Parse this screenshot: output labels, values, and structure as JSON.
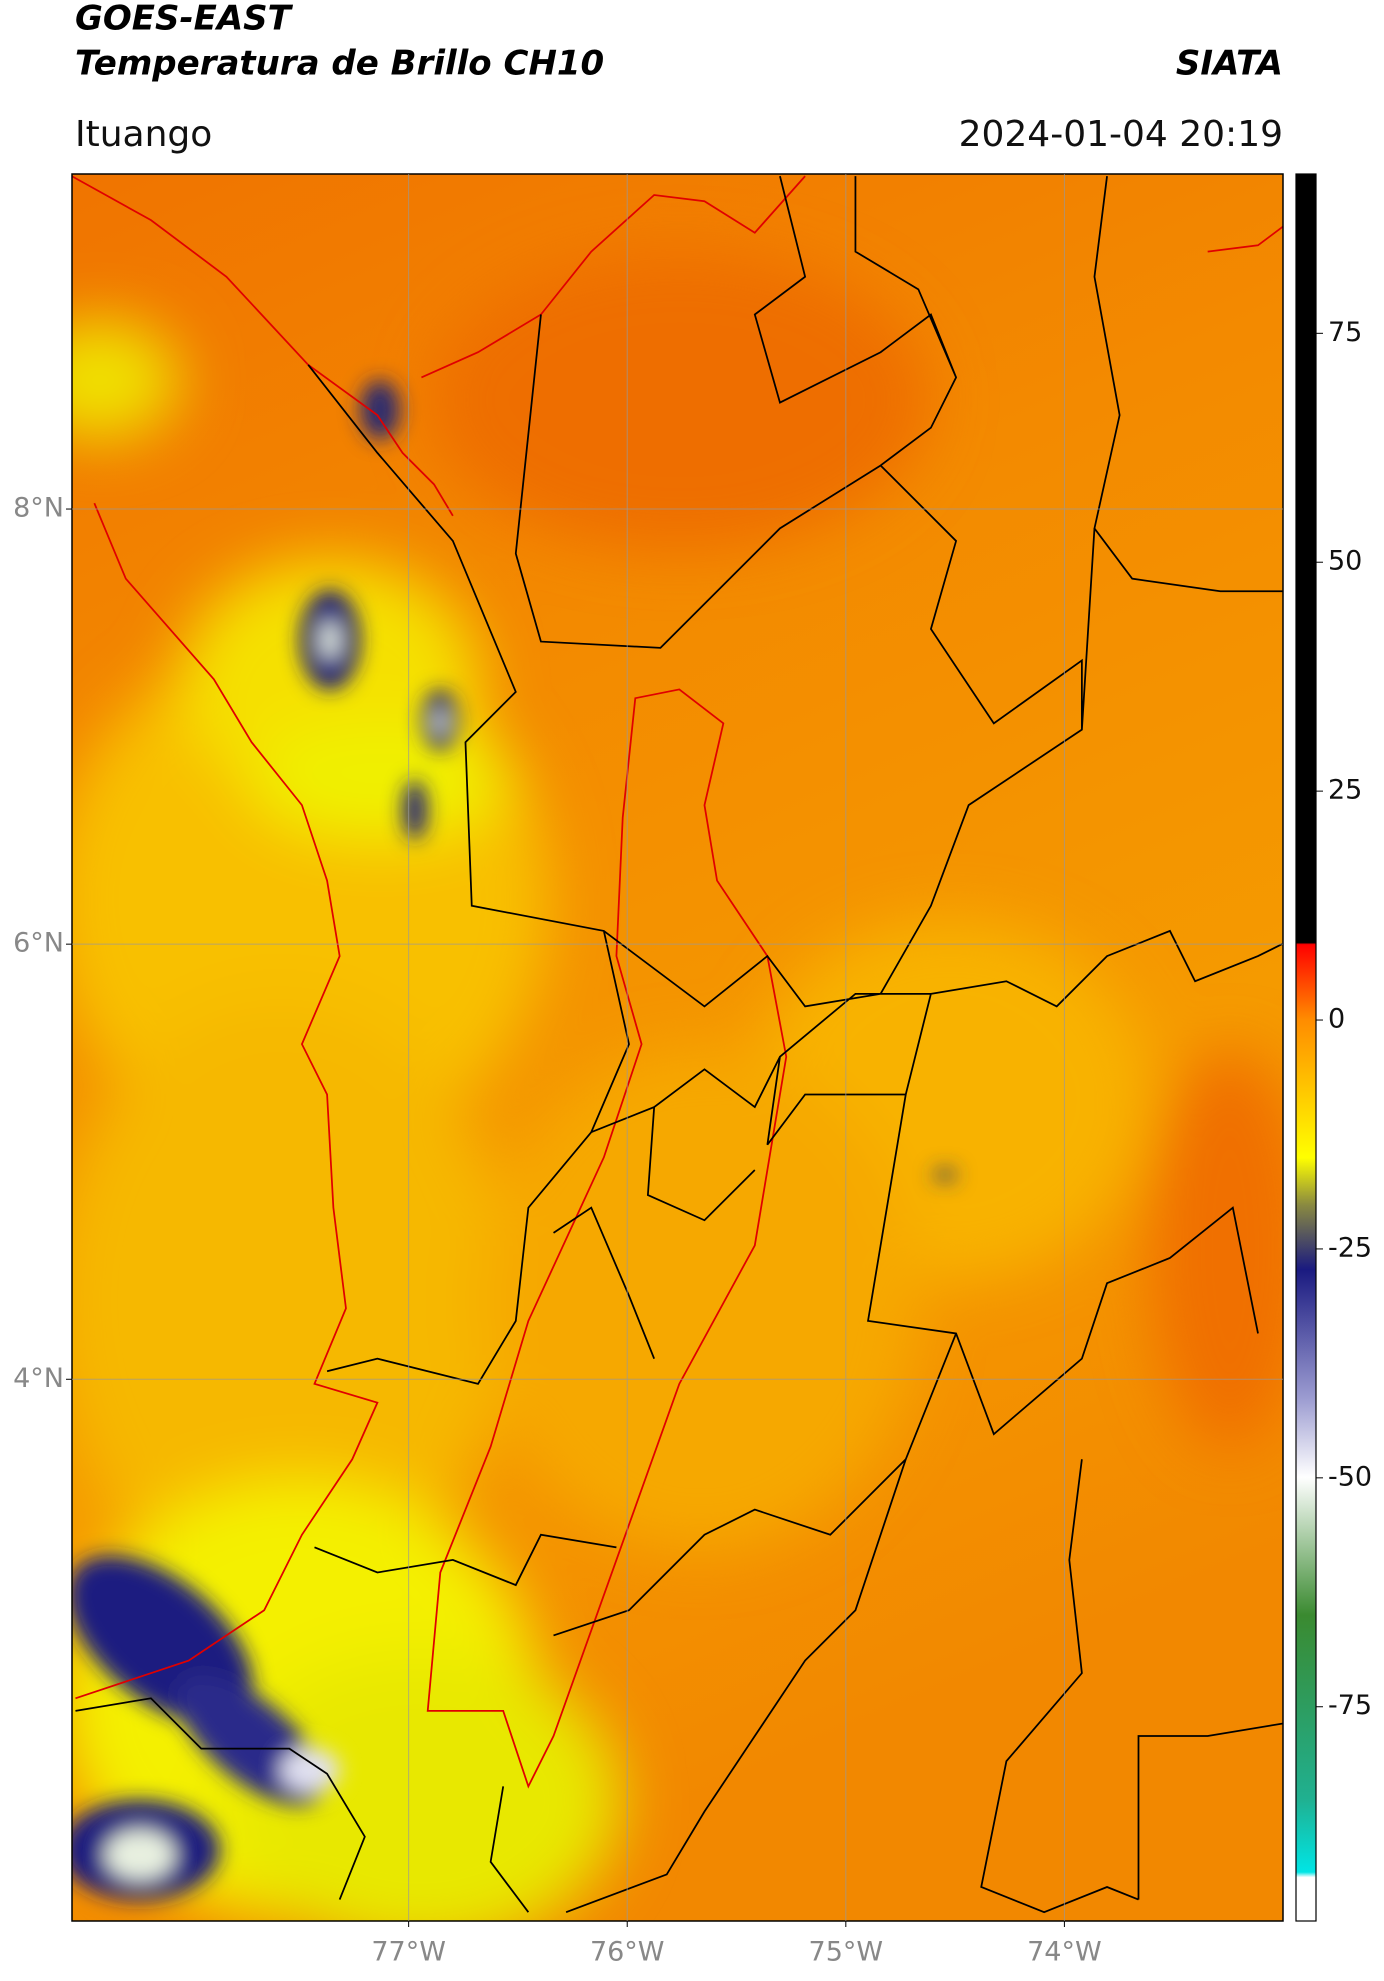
{
  "header": {
    "title": "GOES-EAST",
    "subtitle": "Temperatura de Brillo CH10",
    "brand": "SIATA",
    "location": "Ituango",
    "datetime": "2024-01-04 20:19"
  },
  "map": {
    "ylim": [
      1.51,
      9.54
    ],
    "xlim": [
      -78.54,
      -73.0
    ],
    "yticks": [
      {
        "value": 8,
        "label": "8°N"
      },
      {
        "value": 6,
        "label": "6°N"
      },
      {
        "value": 4,
        "label": "4°N"
      }
    ],
    "xticks": [
      {
        "value": -77,
        "label": "77°W"
      },
      {
        "value": -76,
        "label": "76°W"
      },
      {
        "value": -75,
        "label": "75°W"
      },
      {
        "value": -74,
        "label": "74°W"
      }
    ],
    "grid": true
  },
  "colorbar": {
    "lim": [
      -98.4,
      92.4
    ],
    "ticks": [
      75,
      50,
      25,
      0,
      -25,
      -50,
      -75
    ]
  }
}
